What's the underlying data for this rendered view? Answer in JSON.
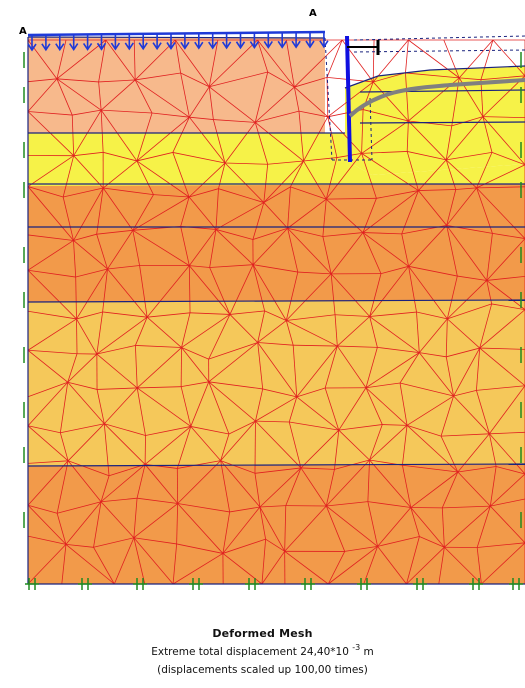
{
  "markers": {
    "left": "A",
    "right": "A"
  },
  "caption": {
    "title": "Deformed Mesh",
    "displacement_prefix": "Extreme total displacement 24,40*10",
    "displacement_exponent": "-3",
    "displacement_unit": "m",
    "scale_note": "(displacements scaled up 100,00 times)"
  },
  "colors": {
    "top_layer": "#f7b98c",
    "clay_layer": "#f29a4a",
    "sand_layer": "#f5c85a",
    "yellow_band": "#f6f248",
    "mesh_lines": "#e02020",
    "layer_bounds": "#1a237e",
    "load": "#1f3ad8",
    "wall": "#1010e0",
    "anchor": "#808080",
    "fixity": "#1f8a1f"
  }
}
